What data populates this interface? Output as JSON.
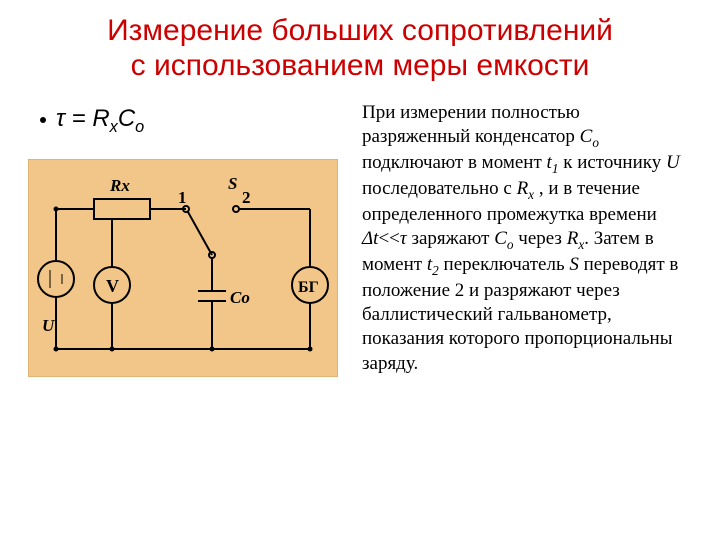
{
  "title": {
    "line1": "Измерение больших сопротивлений",
    "line2": "с использованием меры емкости",
    "color": "#cc0000",
    "fontsize": 30
  },
  "formula": {
    "prefix": "τ = R",
    "sub1": "x",
    "mid": "C",
    "sub2": "o",
    "fontsize": 24
  },
  "circuit": {
    "type": "diagram",
    "background_color": "#f2c689",
    "border_color": "#d0a060",
    "wire_color": "#000000",
    "wire_width": 2,
    "labels": {
      "Rx": "Rx",
      "S": "S",
      "pos1": "1",
      "pos2": "2",
      "V": "V",
      "Co": "Co",
      "BG": "БГ",
      "U": "U"
    },
    "label_fontsize": 17,
    "label_fontstyle": "italic",
    "label_fontweight": "bold"
  },
  "description": {
    "text_parts": [
      {
        "t": "При измерении полностью разряженный конденсатор "
      },
      {
        "t": "C",
        "i": true
      },
      {
        "t": "o",
        "sub": true
      },
      {
        "t": " подключают в момент "
      },
      {
        "t": "t",
        "i": true
      },
      {
        "t": "1",
        "sub": true
      },
      {
        "t": " к источнику "
      },
      {
        "t": "U",
        "i": true
      },
      {
        "t": " последовательно с "
      },
      {
        "t": "R",
        "i": true
      },
      {
        "t": "x",
        "sub": true
      },
      {
        "t": " , и в течение определенного промежутка времени "
      },
      {
        "t": "Δt",
        "i": true
      },
      {
        "t": "<<"
      },
      {
        "t": "τ",
        "i": true
      },
      {
        "t": " заряжают "
      },
      {
        "t": "C",
        "i": true
      },
      {
        "t": "o",
        "sub": true
      },
      {
        "t": " через "
      },
      {
        "t": "R",
        "i": true
      },
      {
        "t": "x",
        "sub": true
      },
      {
        "t": ". Затем в момент "
      },
      {
        "t": "t",
        "i": true
      },
      {
        "t": "2",
        "sub": true
      },
      {
        "t": " переключатель "
      },
      {
        "t": "S",
        "i": true
      },
      {
        "t": " переводят в положение 2 и разряжают через баллистический гальванометр, показания которого пропорциональны заряду."
      }
    ],
    "fontsize": 19,
    "font_family": "Times New Roman"
  }
}
